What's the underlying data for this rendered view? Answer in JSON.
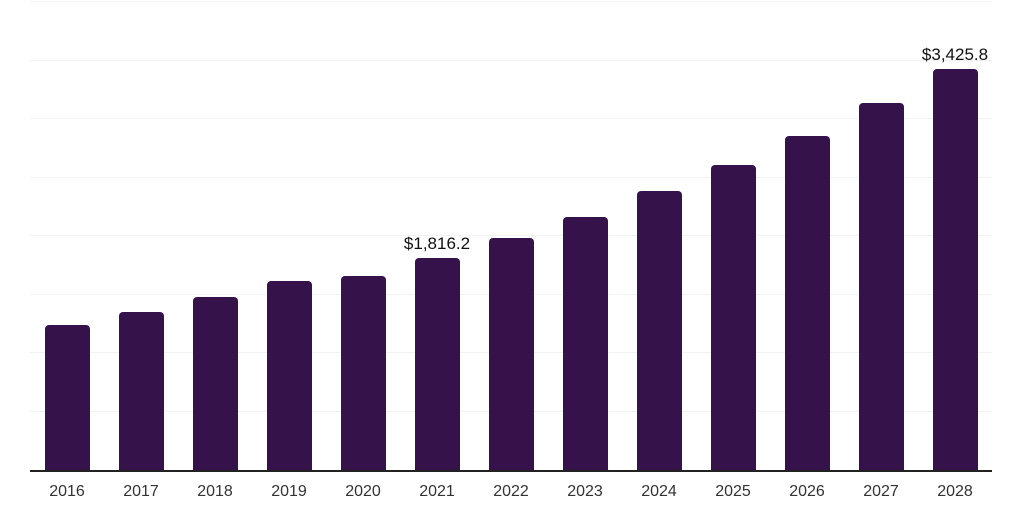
{
  "chart_data": {
    "type": "bar",
    "categories": [
      "2016",
      "2017",
      "2018",
      "2019",
      "2020",
      "2021",
      "2022",
      "2023",
      "2024",
      "2025",
      "2026",
      "2027",
      "2028"
    ],
    "values": [
      1240,
      1350,
      1480,
      1615,
      1660,
      1816.2,
      1985,
      2160,
      2385,
      2605,
      2855,
      3135,
      3425.8
    ],
    "data_labels": {
      "2021": "$1,816.2",
      "2028": "$3,425.8"
    },
    "title": "",
    "xlabel": "",
    "ylabel": "",
    "ylim": [
      0,
      4000
    ],
    "gridline_interval": 500,
    "grid": true,
    "legend": false,
    "y_tick_labels_visible": false,
    "colors": {
      "bar": "#36124b",
      "axis": "#222222",
      "gridline": "#f2f2f2",
      "tick_label": "#333333",
      "data_label": "#111111",
      "background": "#ffffff"
    }
  }
}
